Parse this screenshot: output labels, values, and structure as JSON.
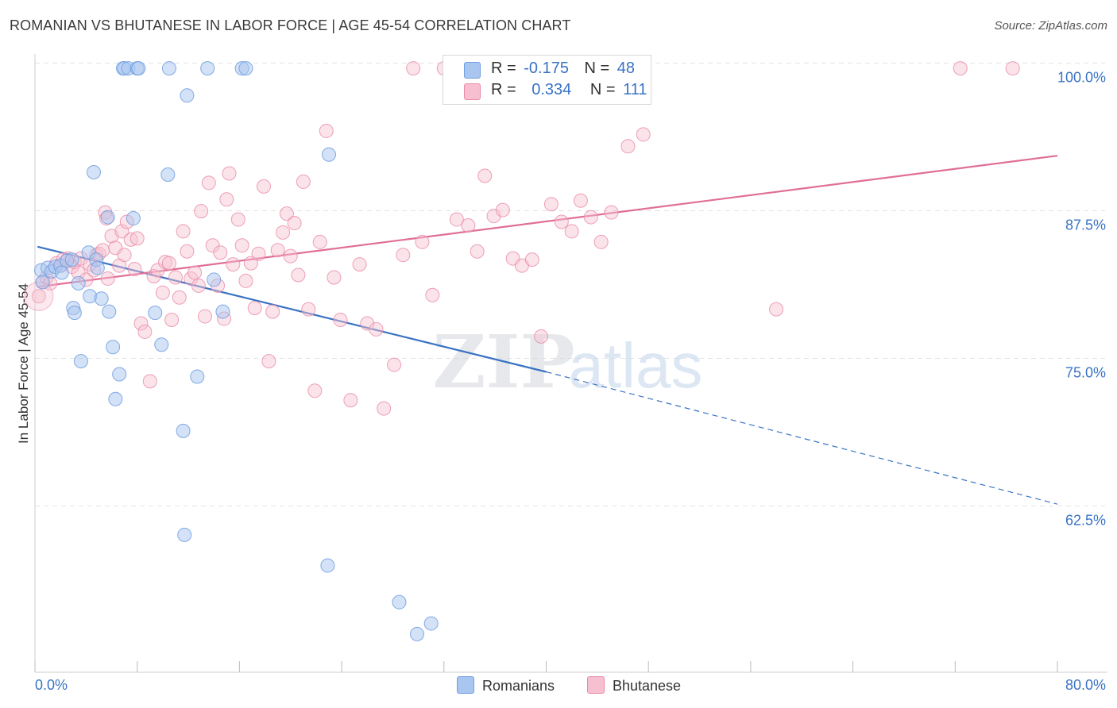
{
  "title": "ROMANIAN VS BHUTANESE IN LABOR FORCE | AGE 45-54 CORRELATION CHART",
  "source": "Source: ZipAtlas.com",
  "watermark": {
    "zip": "ZIP",
    "atlas": "atlas"
  },
  "legend": {
    "rows": [
      {
        "r_label": "R =",
        "r_value": "-0.175",
        "n_label": "N =",
        "n_value": "48"
      },
      {
        "r_label": "R =",
        "r_value": "0.334",
        "n_label": "N =",
        "n_value": "111"
      }
    ]
  },
  "bottom_legend": {
    "romanians": "Romanians",
    "bhutanese": "Bhutanese"
  },
  "colors": {
    "blue_fill": "#a9c6f0",
    "blue_stroke": "#6f9ee0",
    "blue_line": "#3a73c4",
    "pink_fill": "#f7c0d0",
    "pink_stroke": "#e88aa8",
    "pink_line": "#e06e98",
    "grid": "#e3e3e3",
    "tick_label": "#3a73c4"
  },
  "chart_data": {
    "type": "scatter",
    "title": "ROMANIAN VS BHUTANESE IN LABOR FORCE | AGE 45-54 CORRELATION CHART",
    "xlabel": "",
    "ylabel": "In Labor Force | Age 45-54",
    "xlim": [
      0,
      80
    ],
    "ylim": [
      51.5,
      101.5
    ],
    "x_tick_labels": [
      "0.0%",
      "80.0%"
    ],
    "y_ticks": [
      62.5,
      75.0,
      87.5,
      100.0
    ],
    "y_tick_labels": [
      "62.5%",
      "75.0%",
      "87.5%",
      "100.0%"
    ],
    "series": [
      {
        "name": "Romanians",
        "color": "#6f9ee0",
        "r": -0.175,
        "n": 48,
        "trend": {
          "solid": [
            [
              0.2,
              85.6
            ],
            [
              40.0,
              75.0
            ]
          ],
          "dashed": [
            [
              40.0,
              75.0
            ],
            [
              80.0,
              63.8
            ]
          ]
        },
        "points": [
          [
            0.5,
            83.6
          ],
          [
            0.6,
            82.6
          ],
          [
            1.0,
            83.8
          ],
          [
            1.3,
            83.5
          ],
          [
            1.6,
            83.9
          ],
          [
            2.0,
            84.0
          ],
          [
            2.1,
            83.4
          ],
          [
            2.5,
            84.4
          ],
          [
            2.9,
            84.5
          ],
          [
            3.0,
            80.4
          ],
          [
            3.1,
            80.0
          ],
          [
            3.4,
            82.5
          ],
          [
            3.6,
            75.9
          ],
          [
            4.2,
            85.1
          ],
          [
            4.3,
            81.4
          ],
          [
            4.6,
            91.9
          ],
          [
            4.8,
            84.5
          ],
          [
            4.9,
            83.8
          ],
          [
            5.2,
            81.2
          ],
          [
            5.7,
            88.1
          ],
          [
            5.8,
            80.1
          ],
          [
            6.3,
            72.7
          ],
          [
            6.1,
            77.1
          ],
          [
            6.6,
            74.8
          ],
          [
            6.9,
            100.7
          ],
          [
            7.0,
            100.7
          ],
          [
            7.3,
            100.7
          ],
          [
            7.7,
            88.0
          ],
          [
            8.0,
            100.7
          ],
          [
            8.1,
            100.7
          ],
          [
            9.4,
            80.0
          ],
          [
            9.9,
            77.3
          ],
          [
            10.4,
            91.7
          ],
          [
            10.5,
            100.7
          ],
          [
            11.6,
            70.0
          ],
          [
            11.7,
            61.2
          ],
          [
            11.9,
            98.4
          ],
          [
            12.7,
            74.6
          ],
          [
            13.5,
            100.7
          ],
          [
            14.0,
            82.8
          ],
          [
            14.7,
            80.1
          ],
          [
            16.2,
            100.7
          ],
          [
            16.5,
            100.7
          ],
          [
            22.9,
            58.6
          ],
          [
            23.0,
            93.4
          ],
          [
            28.5,
            55.5
          ],
          [
            29.9,
            52.8
          ],
          [
            31.0,
            53.7
          ]
        ]
      },
      {
        "name": "Bhutanese",
        "color": "#e88aa8",
        "r": 0.334,
        "n": 111,
        "trend": {
          "solid": [
            [
              0.2,
              82.2
            ],
            [
              80.0,
              93.3
            ]
          ]
        },
        "points": [
          [
            0.3,
            81.4
          ],
          [
            0.6,
            82.6
          ],
          [
            0.9,
            83.0
          ],
          [
            1.2,
            82.5
          ],
          [
            1.7,
            84.2
          ],
          [
            2.0,
            84.0
          ],
          [
            2.2,
            84.5
          ],
          [
            2.6,
            84.6
          ],
          [
            2.9,
            83.9
          ],
          [
            3.1,
            84.3
          ],
          [
            3.4,
            83.4
          ],
          [
            3.6,
            84.6
          ],
          [
            4.0,
            82.8
          ],
          [
            4.3,
            84.1
          ],
          [
            4.6,
            83.6
          ],
          [
            4.8,
            84.9
          ],
          [
            5.0,
            85.0
          ],
          [
            5.3,
            85.3
          ],
          [
            5.5,
            88.5
          ],
          [
            5.6,
            88.0
          ],
          [
            5.7,
            82.9
          ],
          [
            6.0,
            86.5
          ],
          [
            6.3,
            85.5
          ],
          [
            6.6,
            84.0
          ],
          [
            6.8,
            86.9
          ],
          [
            7.0,
            84.9
          ],
          [
            7.2,
            87.7
          ],
          [
            7.5,
            86.2
          ],
          [
            7.8,
            83.7
          ],
          [
            8.0,
            86.3
          ],
          [
            8.3,
            79.1
          ],
          [
            8.6,
            78.4
          ],
          [
            9.0,
            74.2
          ],
          [
            9.3,
            83.1
          ],
          [
            9.6,
            83.6
          ],
          [
            10.0,
            81.7
          ],
          [
            10.2,
            84.3
          ],
          [
            10.5,
            84.2
          ],
          [
            10.7,
            79.4
          ],
          [
            11.0,
            83.0
          ],
          [
            11.3,
            81.3
          ],
          [
            11.6,
            86.9
          ],
          [
            11.9,
            85.2
          ],
          [
            12.2,
            82.9
          ],
          [
            12.5,
            83.4
          ],
          [
            12.8,
            82.3
          ],
          [
            13.0,
            88.6
          ],
          [
            13.3,
            79.7
          ],
          [
            13.6,
            91.0
          ],
          [
            13.9,
            85.7
          ],
          [
            14.3,
            82.3
          ],
          [
            14.5,
            85.1
          ],
          [
            14.8,
            79.5
          ],
          [
            15.0,
            89.6
          ],
          [
            15.2,
            91.8
          ],
          [
            15.5,
            84.1
          ],
          [
            15.9,
            87.9
          ],
          [
            16.2,
            85.7
          ],
          [
            16.5,
            82.7
          ],
          [
            16.9,
            84.2
          ],
          [
            17.2,
            80.4
          ],
          [
            17.5,
            85.0
          ],
          [
            17.9,
            90.7
          ],
          [
            18.3,
            75.9
          ],
          [
            18.6,
            80.1
          ],
          [
            19.0,
            85.3
          ],
          [
            19.4,
            86.8
          ],
          [
            19.7,
            88.4
          ],
          [
            20.0,
            84.8
          ],
          [
            20.3,
            87.6
          ],
          [
            20.6,
            83.2
          ],
          [
            21.0,
            91.1
          ],
          [
            21.4,
            80.3
          ],
          [
            21.9,
            73.4
          ],
          [
            22.3,
            86.0
          ],
          [
            22.8,
            95.4
          ],
          [
            23.4,
            83.0
          ],
          [
            23.9,
            79.4
          ],
          [
            24.7,
            72.6
          ],
          [
            25.4,
            84.1
          ],
          [
            26.0,
            79.1
          ],
          [
            26.7,
            78.6
          ],
          [
            27.3,
            71.9
          ],
          [
            28.1,
            75.6
          ],
          [
            28.8,
            84.9
          ],
          [
            29.6,
            100.7
          ],
          [
            30.3,
            86.0
          ],
          [
            31.1,
            81.5
          ],
          [
            32.0,
            100.7
          ],
          [
            33.0,
            87.9
          ],
          [
            33.9,
            87.4
          ],
          [
            34.6,
            85.2
          ],
          [
            35.2,
            91.6
          ],
          [
            35.9,
            88.2
          ],
          [
            36.6,
            88.7
          ],
          [
            37.4,
            84.6
          ],
          [
            38.1,
            84.0
          ],
          [
            38.9,
            84.5
          ],
          [
            39.6,
            78.0
          ],
          [
            40.4,
            89.2
          ],
          [
            41.2,
            87.7
          ],
          [
            42.0,
            86.9
          ],
          [
            42.7,
            89.5
          ],
          [
            43.5,
            88.1
          ],
          [
            44.3,
            86.0
          ],
          [
            45.1,
            88.5
          ],
          [
            46.4,
            94.1
          ],
          [
            47.6,
            95.1
          ],
          [
            58.0,
            80.3
          ],
          [
            72.4,
            100.7
          ],
          [
            76.5,
            100.7
          ]
        ]
      }
    ]
  }
}
